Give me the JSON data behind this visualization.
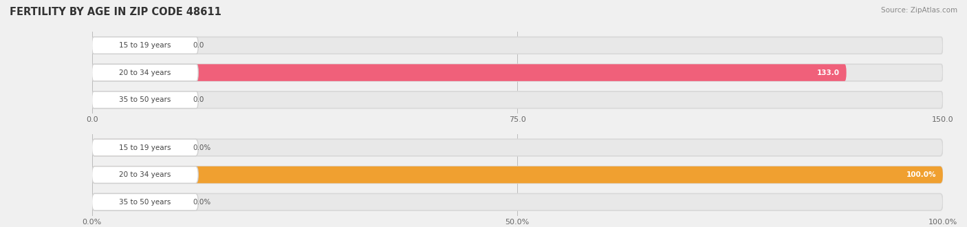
{
  "title": "FERTILITY BY AGE IN ZIP CODE 48611",
  "source": "Source: ZipAtlas.com",
  "background_color": "#f0f0f0",
  "top_chart": {
    "categories": [
      "15 to 19 years",
      "20 to 34 years",
      "35 to 50 years"
    ],
    "values": [
      0.0,
      133.0,
      0.0
    ],
    "bar_color": "#f0607a",
    "bar_color_light": "#f4a0b5",
    "xlim": [
      0,
      150
    ],
    "xticks": [
      0.0,
      75.0,
      150.0
    ],
    "xtick_labels": [
      "0.0",
      "75.0",
      "150.0"
    ],
    "value_suffix": ""
  },
  "bottom_chart": {
    "categories": [
      "15 to 19 years",
      "20 to 34 years",
      "35 to 50 years"
    ],
    "values": [
      0.0,
      100.0,
      0.0
    ],
    "bar_color": "#f0a030",
    "bar_color_light": "#f5c878",
    "xlim": [
      0,
      100
    ],
    "xticks": [
      0.0,
      50.0,
      100.0
    ],
    "xtick_labels": [
      "0.0%",
      "50.0%",
      "100.0%"
    ],
    "value_suffix": "%"
  }
}
